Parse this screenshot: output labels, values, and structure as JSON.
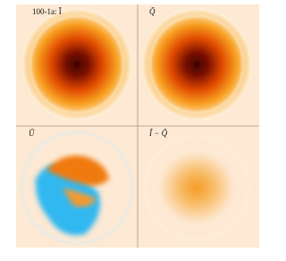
{
  "panels": [
    {
      "label": "100-1a: Ĩ"
    },
    {
      "label": "Q̃"
    },
    {
      "label": "Ũ"
    },
    {
      "label": "Ĩ − Q̃"
    }
  ]
}
